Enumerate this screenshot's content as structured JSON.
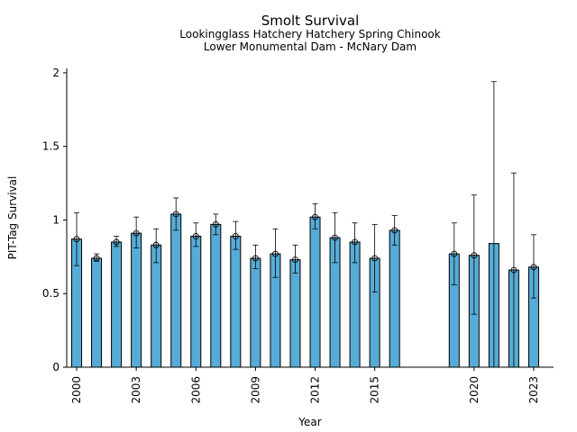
{
  "chart_data": {
    "type": "bar",
    "title": "Smolt Survival",
    "subtitle_lines": [
      "Lookingglass Hatchery Hatchery Spring Chinook",
      "Lower Monumental Dam - McNary Dam"
    ],
    "xlabel": "Year",
    "ylabel": "PIT-Tag Survival",
    "ylim": [
      0,
      2.03
    ],
    "xlim": [
      1999.5,
      2024
    ],
    "yticks": [
      {
        "value": 0,
        "label": "0"
      },
      {
        "value": 0.5,
        "label": "0.5"
      },
      {
        "value": 1,
        "label": "1"
      },
      {
        "value": 1.5,
        "label": "1.5"
      },
      {
        "value": 2,
        "label": "2"
      }
    ],
    "xticks": [
      2000,
      2003,
      2006,
      2009,
      2012,
      2015,
      2020,
      2023
    ],
    "bar_color": "#56acd6",
    "series": [
      {
        "points": [
          {
            "x": 2000,
            "y": 0.87,
            "lo": 0.69,
            "hi": 1.05
          },
          {
            "x": 2001,
            "y": 0.74,
            "lo": 0.72,
            "hi": 0.77
          },
          {
            "x": 2002,
            "y": 0.85,
            "lo": 0.82,
            "hi": 0.89
          },
          {
            "x": 2003,
            "y": 0.91,
            "lo": 0.81,
            "hi": 1.02
          },
          {
            "x": 2004,
            "y": 0.83,
            "lo": 0.71,
            "hi": 0.94
          },
          {
            "x": 2005,
            "y": 1.04,
            "lo": 0.93,
            "hi": 1.15
          },
          {
            "x": 2006,
            "y": 0.89,
            "lo": 0.82,
            "hi": 0.98
          },
          {
            "x": 2007,
            "y": 0.97,
            "lo": 0.9,
            "hi": 1.04
          },
          {
            "x": 2008,
            "y": 0.89,
            "lo": 0.8,
            "hi": 0.99
          },
          {
            "x": 2009,
            "y": 0.74,
            "lo": 0.67,
            "hi": 0.83
          },
          {
            "x": 2010,
            "y": 0.77,
            "lo": 0.61,
            "hi": 0.94
          },
          {
            "x": 2011,
            "y": 0.73,
            "lo": 0.64,
            "hi": 0.83
          },
          {
            "x": 2012,
            "y": 1.02,
            "lo": 0.94,
            "hi": 1.11
          },
          {
            "x": 2013,
            "y": 0.88,
            "lo": 0.71,
            "hi": 1.05
          },
          {
            "x": 2014,
            "y": 0.85,
            "lo": 0.71,
            "hi": 0.98
          },
          {
            "x": 2015,
            "y": 0.74,
            "lo": 0.51,
            "hi": 0.97
          },
          {
            "x": 2016,
            "y": 0.93,
            "lo": 0.83,
            "hi": 1.03
          },
          {
            "x": 2019,
            "y": 0.77,
            "lo": 0.56,
            "hi": 0.98
          },
          {
            "x": 2020,
            "y": 0.76,
            "lo": 0.36,
            "hi": 1.17
          },
          {
            "x": 2021,
            "y": 0.84,
            "lo": 0.0,
            "hi": 1.94,
            "no_marker": true
          },
          {
            "x": 2022,
            "y": 0.66,
            "lo": 0.0,
            "hi": 1.32
          },
          {
            "x": 2023,
            "y": 0.68,
            "lo": 0.47,
            "hi": 0.9
          }
        ]
      }
    ]
  }
}
